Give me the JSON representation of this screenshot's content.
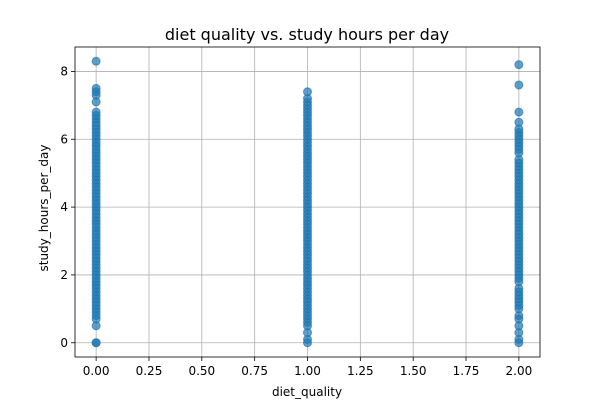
{
  "chart_data": {
    "type": "scatter",
    "title": "diet quality vs. study hours per day",
    "xlabel": "diet_quality",
    "ylabel": "study_hours_per_day",
    "xlim": [
      -0.1,
      2.1
    ],
    "ylim": [
      -0.42,
      8.72
    ],
    "xticks": [
      0.0,
      0.25,
      0.5,
      0.75,
      1.0,
      1.25,
      1.5,
      1.75,
      2.0
    ],
    "xtick_labels": [
      "0.00",
      "0.25",
      "0.50",
      "0.75",
      "1.00",
      "1.25",
      "1.50",
      "1.75",
      "2.00"
    ],
    "yticks": [
      0,
      2,
      4,
      6,
      8
    ],
    "ytick_labels": [
      "0",
      "2",
      "4",
      "6",
      "8"
    ],
    "grid": true,
    "color": "#1f77b4",
    "series": [
      {
        "x_value": 0,
        "y": [
          0.0,
          0.0,
          0.5,
          0.7,
          0.8,
          0.9,
          1.0,
          1.1,
          1.2,
          1.3,
          1.4,
          1.5,
          1.6,
          1.7,
          1.8,
          1.9,
          2.0,
          2.1,
          2.2,
          2.3,
          2.4,
          2.5,
          2.6,
          2.7,
          2.8,
          2.9,
          3.0,
          3.1,
          3.2,
          3.3,
          3.4,
          3.5,
          3.6,
          3.7,
          3.8,
          3.9,
          4.0,
          4.1,
          4.2,
          4.3,
          4.4,
          4.5,
          4.6,
          4.7,
          4.8,
          4.9,
          5.0,
          5.1,
          5.2,
          5.3,
          5.4,
          5.5,
          5.6,
          5.7,
          5.8,
          5.9,
          6.0,
          6.1,
          6.2,
          6.3,
          6.4,
          6.5,
          6.6,
          6.7,
          6.8,
          7.1,
          7.3,
          7.4,
          7.5,
          8.3
        ]
      },
      {
        "x_value": 1,
        "y": [
          0.0,
          0.1,
          0.3,
          0.5,
          0.6,
          0.7,
          0.8,
          0.9,
          1.0,
          1.1,
          1.2,
          1.3,
          1.4,
          1.5,
          1.6,
          1.7,
          1.8,
          1.9,
          2.0,
          2.1,
          2.2,
          2.3,
          2.4,
          2.5,
          2.6,
          2.7,
          2.8,
          2.9,
          3.0,
          3.1,
          3.2,
          3.3,
          3.4,
          3.5,
          3.6,
          3.7,
          3.8,
          3.9,
          4.0,
          4.1,
          4.2,
          4.3,
          4.4,
          4.5,
          4.6,
          4.7,
          4.8,
          4.9,
          5.0,
          5.1,
          5.2,
          5.3,
          5.4,
          5.5,
          5.6,
          5.7,
          5.8,
          5.9,
          6.0,
          6.1,
          6.2,
          6.3,
          6.4,
          6.5,
          6.6,
          6.7,
          6.8,
          6.9,
          7.0,
          7.1,
          7.2,
          7.4
        ]
      },
      {
        "x_value": 2,
        "y": [
          0.0,
          0.1,
          0.3,
          0.5,
          0.7,
          0.8,
          1.0,
          1.1,
          1.2,
          1.3,
          1.4,
          1.5,
          1.6,
          1.8,
          1.9,
          2.0,
          2.1,
          2.2,
          2.3,
          2.4,
          2.5,
          2.6,
          2.7,
          2.8,
          2.9,
          3.0,
          3.1,
          3.2,
          3.3,
          3.4,
          3.5,
          3.6,
          3.7,
          3.8,
          3.9,
          4.0,
          4.1,
          4.2,
          4.3,
          4.4,
          4.5,
          4.6,
          4.7,
          4.8,
          4.9,
          5.0,
          5.1,
          5.2,
          5.3,
          5.4,
          5.6,
          5.7,
          5.8,
          5.9,
          6.0,
          6.1,
          6.2,
          6.3,
          6.5,
          6.8,
          7.6,
          8.2
        ]
      }
    ]
  }
}
